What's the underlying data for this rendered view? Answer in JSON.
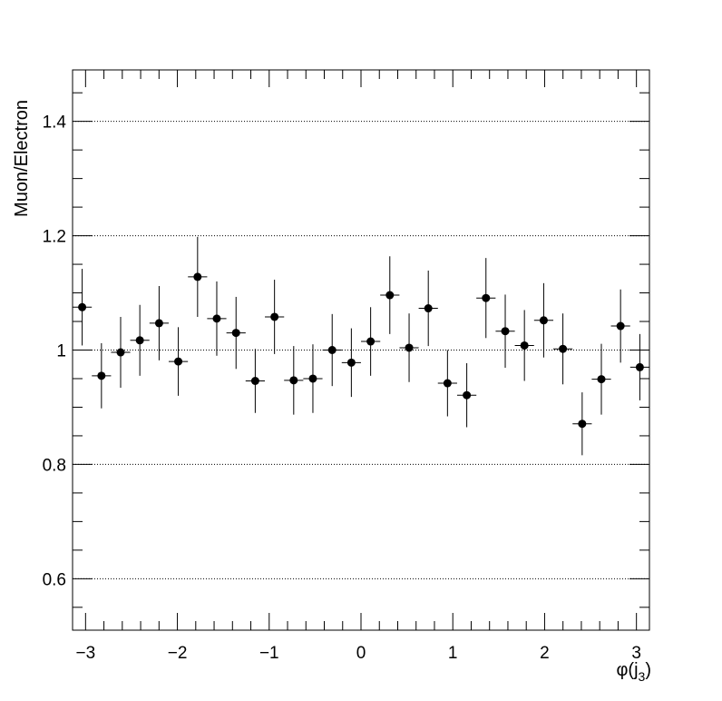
{
  "chart_data": {
    "type": "scatter",
    "style": "points-with-error-bars",
    "xlabel": "φ(j₃)",
    "xlabel_parts": {
      "base": "φ(j",
      "sub": "3",
      "close": ")"
    },
    "ylabel": "Muon/Electron",
    "xlim": [
      -3.1416,
      3.1416
    ],
    "ylim": [
      0.51,
      1.49
    ],
    "x_ticks": [
      -3,
      -2,
      -1,
      0,
      1,
      2,
      3
    ],
    "x_tick_labels": [
      "−3",
      "−2",
      "−1",
      "0",
      "1",
      "2",
      "3"
    ],
    "y_ticks": [
      0.6,
      0.8,
      1.0,
      1.2,
      1.4
    ],
    "y_tick_labels": [
      "0.6",
      "0.8",
      "1",
      "1.2",
      "1.4"
    ],
    "grid": {
      "x": false,
      "y": true,
      "style": "dotted"
    },
    "marker_color": "#000000",
    "x_half_width": 0.1047,
    "points": [
      {
        "x": -3.037,
        "y": 1.075,
        "err": 0.067
      },
      {
        "x": -2.827,
        "y": 0.955,
        "err": 0.057
      },
      {
        "x": -2.618,
        "y": 0.996,
        "err": 0.062
      },
      {
        "x": -2.409,
        "y": 1.017,
        "err": 0.062
      },
      {
        "x": -2.199,
        "y": 1.047,
        "err": 0.065
      },
      {
        "x": -1.99,
        "y": 0.98,
        "err": 0.06
      },
      {
        "x": -1.78,
        "y": 1.128,
        "err": 0.07
      },
      {
        "x": -1.571,
        "y": 1.055,
        "err": 0.065
      },
      {
        "x": -1.361,
        "y": 1.03,
        "err": 0.063
      },
      {
        "x": -1.152,
        "y": 0.946,
        "err": 0.056
      },
      {
        "x": -0.942,
        "y": 1.058,
        "err": 0.065
      },
      {
        "x": -0.733,
        "y": 0.947,
        "err": 0.06
      },
      {
        "x": -0.524,
        "y": 0.95,
        "err": 0.06
      },
      {
        "x": -0.314,
        "y": 1.0,
        "err": 0.063
      },
      {
        "x": -0.105,
        "y": 0.978,
        "err": 0.06
      },
      {
        "x": 0.105,
        "y": 1.015,
        "err": 0.06
      },
      {
        "x": 0.314,
        "y": 1.096,
        "err": 0.068
      },
      {
        "x": 0.524,
        "y": 1.004,
        "err": 0.06
      },
      {
        "x": 0.733,
        "y": 1.073,
        "err": 0.066
      },
      {
        "x": 0.942,
        "y": 0.942,
        "err": 0.058
      },
      {
        "x": 1.152,
        "y": 0.921,
        "err": 0.056
      },
      {
        "x": 1.361,
        "y": 1.091,
        "err": 0.07
      },
      {
        "x": 1.571,
        "y": 1.033,
        "err": 0.064
      },
      {
        "x": 1.78,
        "y": 1.008,
        "err": 0.062
      },
      {
        "x": 1.99,
        "y": 1.052,
        "err": 0.065
      },
      {
        "x": 2.199,
        "y": 1.002,
        "err": 0.062
      },
      {
        "x": 2.409,
        "y": 0.871,
        "err": 0.055
      },
      {
        "x": 2.618,
        "y": 0.949,
        "err": 0.062
      },
      {
        "x": 2.827,
        "y": 1.042,
        "err": 0.064
      },
      {
        "x": 3.037,
        "y": 0.97,
        "err": 0.058
      }
    ]
  }
}
